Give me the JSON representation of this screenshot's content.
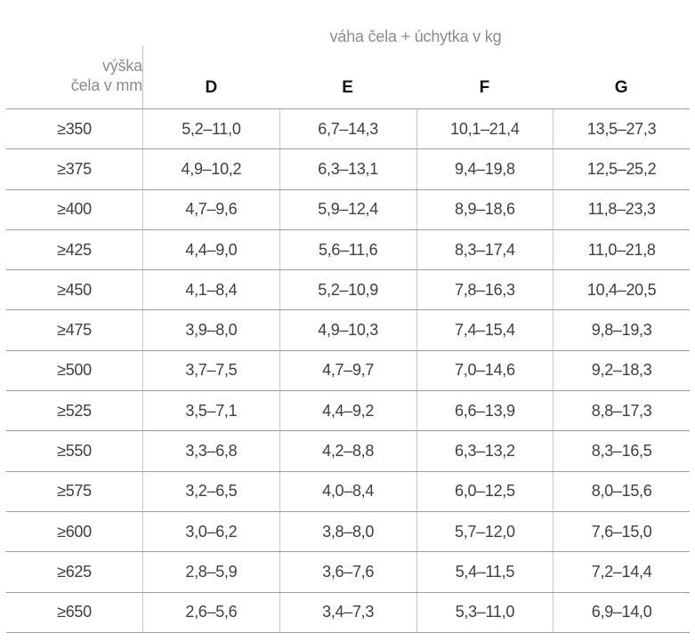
{
  "table": {
    "title": "váha čela + úchytka v kg",
    "row_header": {
      "line1": "výška",
      "line2": "čela v mm"
    },
    "columns": [
      "D",
      "E",
      "F",
      "G"
    ],
    "rows": [
      {
        "height": "≥350",
        "values": [
          "5,2–11,0",
          "6,7–14,3",
          "10,1–21,4",
          "13,5–27,3"
        ]
      },
      {
        "height": "≥375",
        "values": [
          "4,9–10,2",
          "6,3–13,1",
          "9,4–19,8",
          "12,5–25,2"
        ]
      },
      {
        "height": "≥400",
        "values": [
          "4,7–9,6",
          "5,9–12,4",
          "8,9–18,6",
          "11,8–23,3"
        ]
      },
      {
        "height": "≥425",
        "values": [
          "4,4–9,0",
          "5,6–11,6",
          "8,3–17,4",
          "11,0–21,8"
        ]
      },
      {
        "height": "≥450",
        "values": [
          "4,1–8,4",
          "5,2–10,9",
          "7,8–16,3",
          "10,4–20,5"
        ]
      },
      {
        "height": "≥475",
        "values": [
          "3,9–8,0",
          "4,9–10,3",
          "7,4–15,4",
          "9,8–19,3"
        ]
      },
      {
        "height": "≥500",
        "values": [
          "3,7–7,5",
          "4,7–9,7",
          "7,0–14,6",
          "9,2–18,3"
        ]
      },
      {
        "height": "≥525",
        "values": [
          "3,5–7,1",
          "4,4–9,2",
          "6,6–13,9",
          "8,8–17,3"
        ]
      },
      {
        "height": "≥550",
        "values": [
          "3,3–6,8",
          "4,2–8,8",
          "6,3–13,2",
          "8,3–16,5"
        ]
      },
      {
        "height": "≥575",
        "values": [
          "3,2–6,5",
          "4,0–8,4",
          "6,0–12,5",
          "8,0–15,6"
        ]
      },
      {
        "height": "≥600",
        "values": [
          "3,0–6,2",
          "3,8–8,0",
          "5,7–12,0",
          "7,6–15,0"
        ]
      },
      {
        "height": "≥625",
        "values": [
          "2,8–5,9",
          "3,6–7,6",
          "5,4–11,5",
          "7,2–14,4"
        ]
      },
      {
        "height": "≥650",
        "values": [
          "2,6–5,6",
          "3,4–7,3",
          "5,3–11,0",
          "6,9–14,0"
        ]
      }
    ],
    "colors": {
      "heading_text": "#8c8c8c",
      "data_text": "#3f3f3e",
      "column_letter_text": "#141414",
      "horizontal_rule": "#9e9e9e",
      "vertical_rule": "#c9c9c9"
    }
  }
}
